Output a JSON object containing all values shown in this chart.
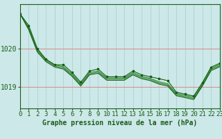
{
  "title": "Graphe pression niveau de la mer (hPa)",
  "bg_color": "#cce8e8",
  "grid_color": "#aacccc",
  "line_color_dark": "#1a5c1a",
  "line_color_mid": "#2d8b2d",
  "hours": [
    0,
    1,
    2,
    3,
    4,
    5,
    6,
    7,
    8,
    9,
    10,
    11,
    12,
    13,
    14,
    15,
    16,
    17,
    18,
    19,
    20,
    21,
    22,
    23
  ],
  "smooth1": [
    1020.9,
    1020.55,
    1019.97,
    1019.72,
    1019.58,
    1019.53,
    1019.34,
    1019.09,
    1019.38,
    1019.42,
    1019.24,
    1019.24,
    1019.24,
    1019.38,
    1019.28,
    1019.23,
    1019.14,
    1019.09,
    1018.84,
    1018.79,
    1018.74,
    1019.09,
    1019.49,
    1019.59
  ],
  "smooth2": [
    1020.9,
    1020.52,
    1019.94,
    1019.69,
    1019.55,
    1019.5,
    1019.31,
    1019.06,
    1019.35,
    1019.39,
    1019.21,
    1019.21,
    1019.21,
    1019.35,
    1019.25,
    1019.2,
    1019.11,
    1019.06,
    1018.81,
    1018.76,
    1018.71,
    1019.06,
    1019.46,
    1019.56
  ],
  "smooth3": [
    1020.9,
    1020.49,
    1019.91,
    1019.66,
    1019.52,
    1019.47,
    1019.28,
    1019.03,
    1019.32,
    1019.36,
    1019.18,
    1019.18,
    1019.18,
    1019.32,
    1019.22,
    1019.17,
    1019.08,
    1019.03,
    1018.78,
    1018.73,
    1018.68,
    1019.03,
    1019.43,
    1019.53
  ],
  "jagged": [
    1020.9,
    1020.6,
    1020.0,
    1019.72,
    1019.58,
    1019.58,
    1019.38,
    1019.13,
    1019.42,
    1019.47,
    1019.27,
    1019.27,
    1019.27,
    1019.42,
    1019.32,
    1019.27,
    1019.22,
    1019.17,
    1018.87,
    1018.82,
    1018.77,
    1019.12,
    1019.52,
    1019.62
  ],
  "yticks": [
    1019,
    1020
  ],
  "ylim": [
    1018.45,
    1021.15
  ],
  "xlim": [
    0,
    23
  ],
  "hline_color": "#dd8888",
  "xlabel_fontsize": 6.5,
  "ylabel_fontsize": 7,
  "title_fontsize": 7,
  "tick_color": "#1a5c1a",
  "axis_color": "#1a5c1a"
}
